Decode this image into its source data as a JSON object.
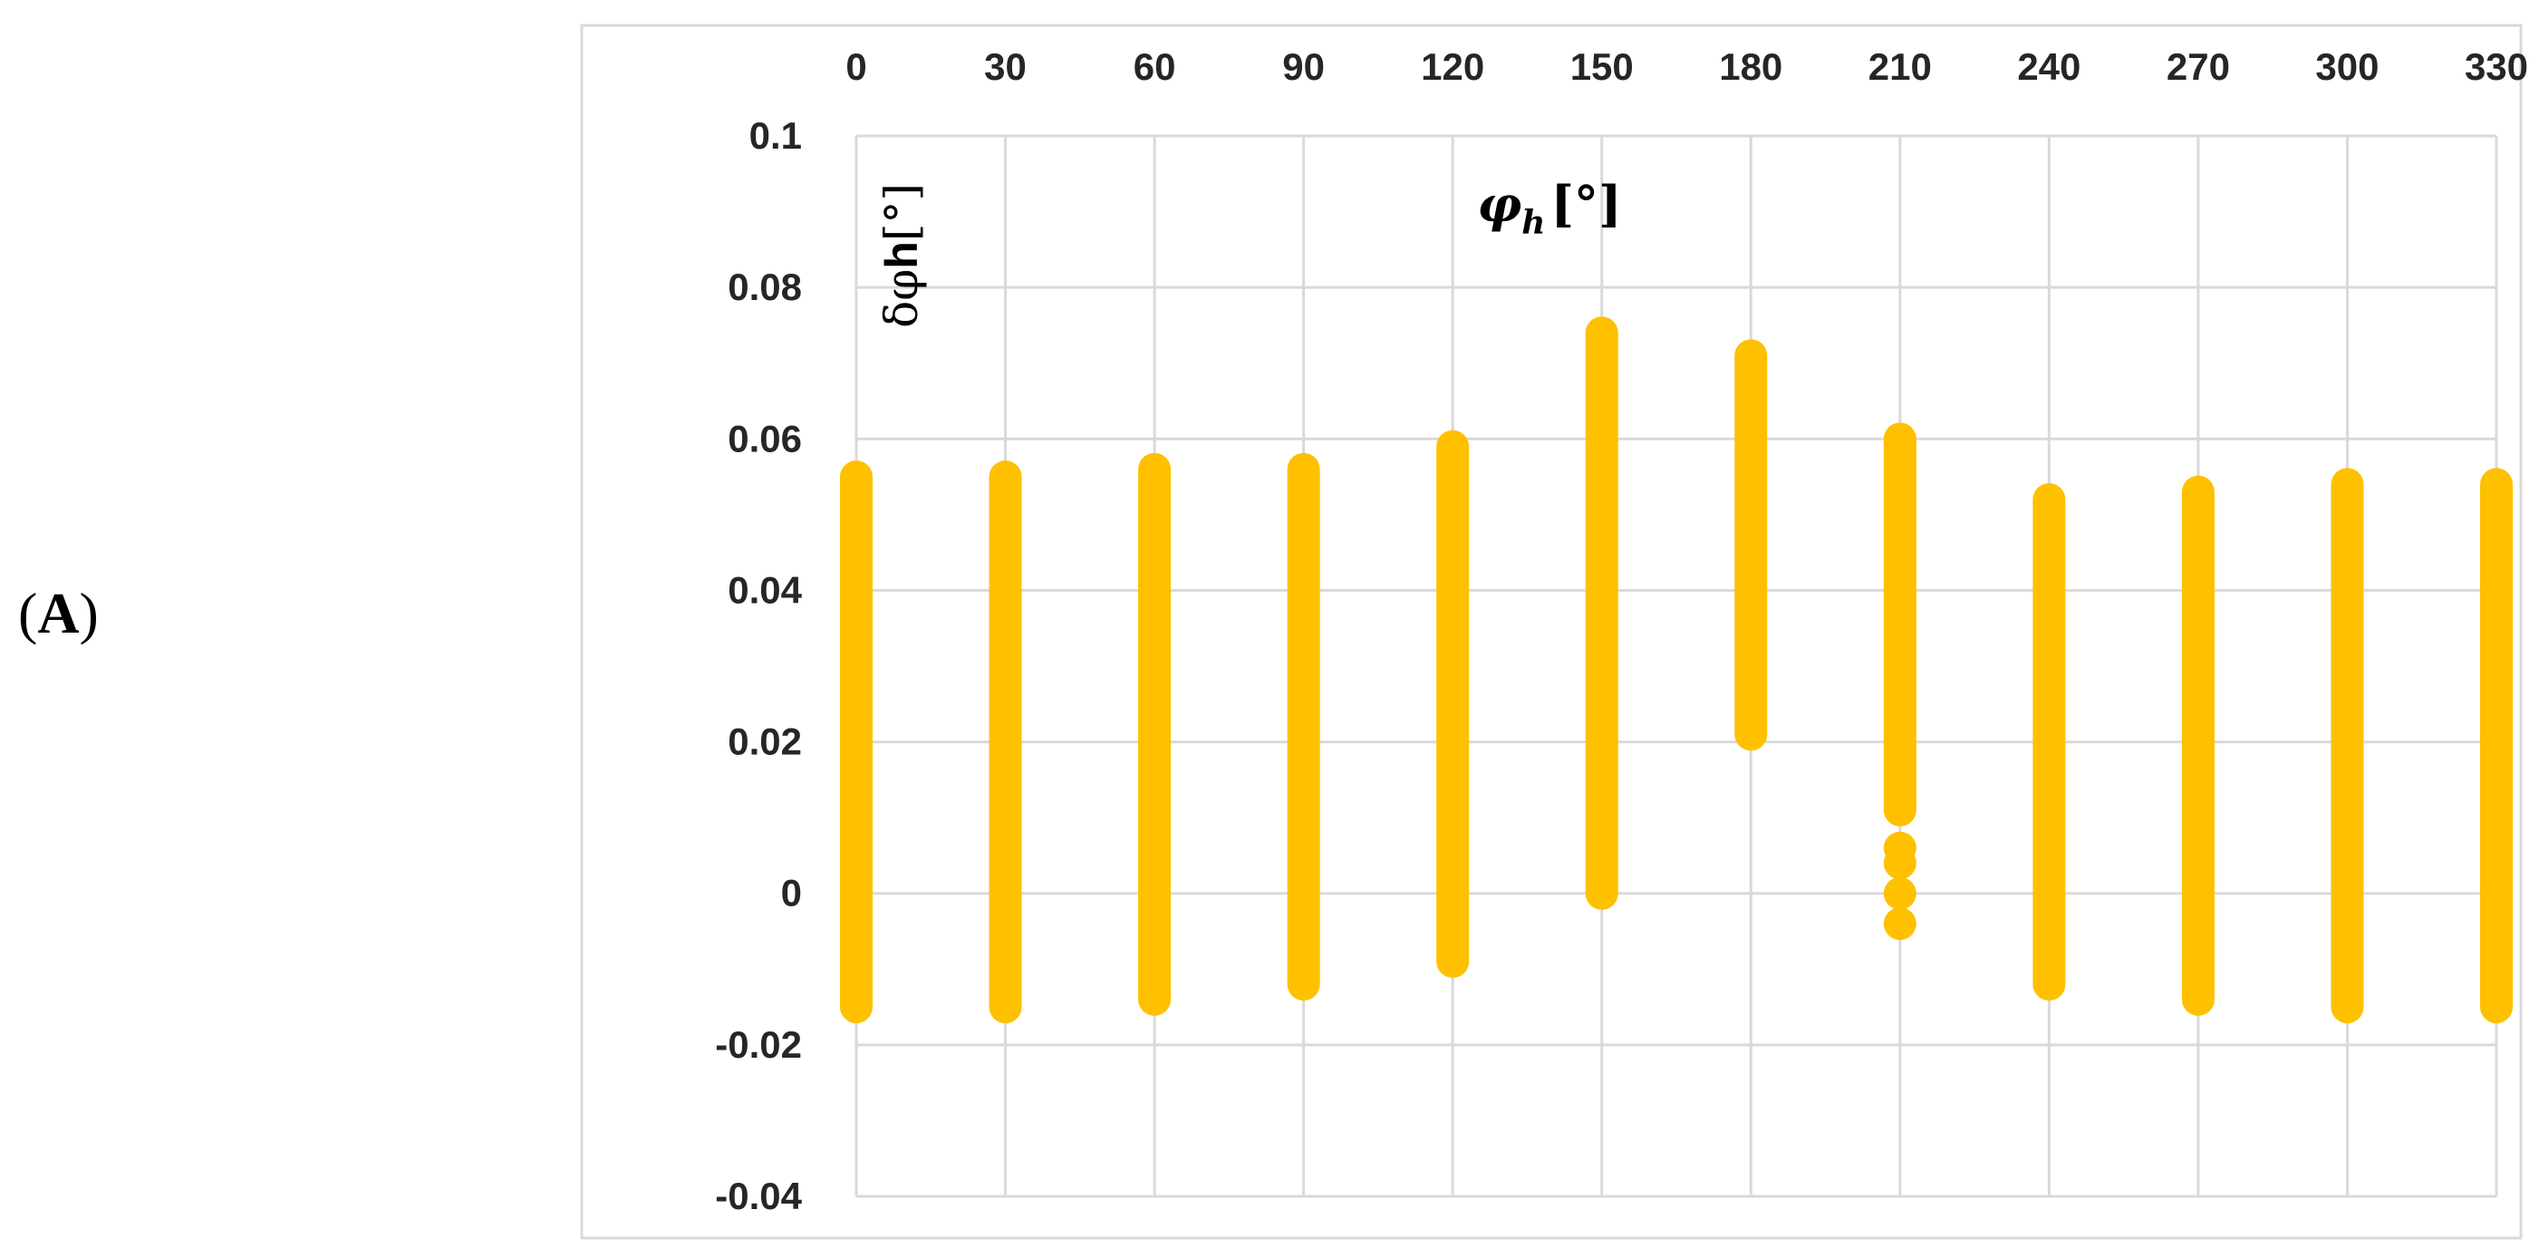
{
  "panel_label": {
    "open": "(",
    "letter": "A",
    "close": ")"
  },
  "chart_data": {
    "type": "scatter",
    "title": "",
    "xlabel_symbol": "φ",
    "xlabel_sub": "h",
    "xlabel_unit": "[°]",
    "ylabel_prefix": "δφ",
    "ylabel_bold": "h",
    "ylabel_unit": "[°]",
    "x_ticks": [
      0,
      30,
      60,
      90,
      120,
      150,
      180,
      210,
      240,
      270,
      300,
      330
    ],
    "x_tick_position": "top",
    "xlim": [
      0,
      330
    ],
    "ylim": [
      -0.04,
      0.1
    ],
    "y_ticks": [
      -0.04,
      -0.02,
      0,
      0.02,
      0.04,
      0.06,
      0.08,
      0.1
    ],
    "grid": true,
    "marker_color": "#FFC000",
    "series": [
      {
        "x": 0,
        "ymin": -0.015,
        "ymax": 0.055
      },
      {
        "x": 30,
        "ymin": -0.015,
        "ymax": 0.055
      },
      {
        "x": 60,
        "ymin": -0.014,
        "ymax": 0.056
      },
      {
        "x": 90,
        "ymin": -0.012,
        "ymax": 0.056
      },
      {
        "x": 120,
        "ymin": -0.009,
        "ymax": 0.059
      },
      {
        "x": 150,
        "ymin": 0.0,
        "ymax": 0.074
      },
      {
        "x": 180,
        "ymin": 0.021,
        "ymax": 0.071
      },
      {
        "x": 210,
        "ymin": 0.011,
        "ymax": 0.06,
        "extra_points": [
          0.006,
          0.004,
          0.0,
          -0.004
        ]
      },
      {
        "x": 240,
        "ymin": -0.012,
        "ymax": 0.052
      },
      {
        "x": 270,
        "ymin": -0.014,
        "ymax": 0.053
      },
      {
        "x": 300,
        "ymin": -0.015,
        "ymax": 0.054
      },
      {
        "x": 330,
        "ymin": -0.015,
        "ymax": 0.054
      }
    ]
  }
}
